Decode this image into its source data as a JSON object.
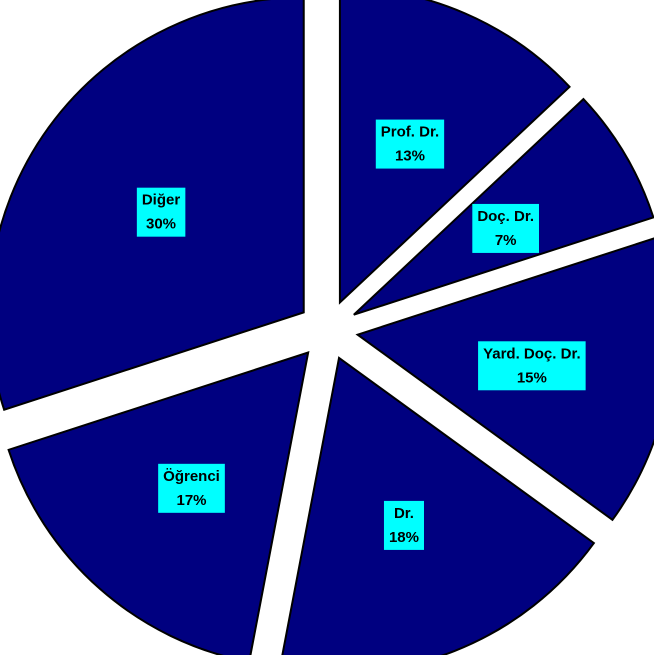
{
  "chart_data": {
    "type": "pie",
    "exploded": true,
    "slices": [
      {
        "label": "Prof. Dr.",
        "value": 13,
        "value_label": "13%"
      },
      {
        "label": "Doç. Dr.",
        "value": 7,
        "value_label": "7%"
      },
      {
        "label": "Yard. Doç. Dr.",
        "value": 15,
        "value_label": "15%"
      },
      {
        "label": "Dr.",
        "value": 18,
        "value_label": "18%"
      },
      {
        "label": "Öğrenci",
        "value": 17,
        "value_label": "17%"
      },
      {
        "label": "Diğer",
        "value": 30,
        "value_label": "30%"
      }
    ],
    "colors": {
      "slice_fill": "#000080",
      "slice_stroke": "#000000",
      "label_background": "#00ffff",
      "label_text": "#000000"
    }
  }
}
